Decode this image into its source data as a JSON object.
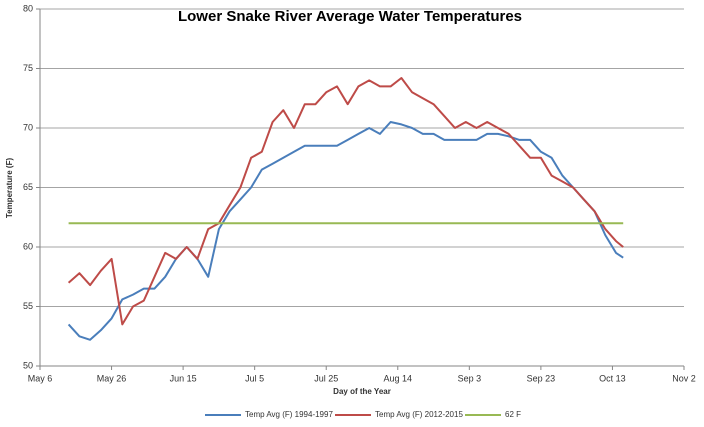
{
  "chart_data": {
    "type": "line",
    "title": "Lower Snake River Average Water Temperatures",
    "x_label": "Day of the Year",
    "y_label": "Temperature (F)",
    "x": [
      "May 14",
      "May 17",
      "May 20",
      "May 23",
      "May 26",
      "May 29",
      "Jun 1",
      "Jun 4",
      "Jun 7",
      "Jun 10",
      "Jun 13",
      "Jun 16",
      "Jun 19",
      "Jun 22",
      "Jun 25",
      "Jun 28",
      "Jul 1",
      "Jul 4",
      "Jul 7",
      "Jul 10",
      "Jul 13",
      "Jul 16",
      "Jul 19",
      "Jul 22",
      "Jul 25",
      "Jul 28",
      "Jul 31",
      "Aug 3",
      "Aug 6",
      "Aug 9",
      "Aug 12",
      "Aug 15",
      "Aug 18",
      "Aug 21",
      "Aug 24",
      "Aug 27",
      "Aug 30",
      "Sep 2",
      "Sep 5",
      "Sep 8",
      "Sep 11",
      "Sep 14",
      "Sep 17",
      "Sep 20",
      "Sep 23",
      "Sep 26",
      "Sep 29",
      "Oct 2",
      "Oct 5",
      "Oct 8",
      "Oct 11",
      "Oct 14",
      "Oct 16"
    ],
    "series": [
      {
        "name": "Temp Avg (F) 1994-1997",
        "color": "#4a7ebb",
        "values": [
          53.5,
          52.5,
          52.2,
          53,
          54,
          55.6,
          56,
          56.5,
          56.5,
          57.5,
          59,
          60,
          59,
          57.5,
          61.5,
          63,
          64,
          65,
          66.5,
          67,
          67.5,
          68,
          68.5,
          68.5,
          68.5,
          68.5,
          69,
          69.5,
          70,
          69.5,
          70.5,
          70.3,
          70,
          69.5,
          69.5,
          69,
          69,
          69,
          69,
          69.5,
          69.5,
          69.3,
          69,
          69,
          68,
          67.5,
          66,
          65,
          64,
          63,
          61,
          59.5,
          59.1
        ]
      },
      {
        "name": "Temp Avg (F) 2012-2015",
        "color": "#be4b48",
        "values": [
          57,
          57.8,
          56.8,
          58,
          59,
          53.5,
          55,
          55.5,
          57.5,
          59.5,
          59,
          60,
          59,
          61.5,
          62,
          63.5,
          65,
          67.5,
          68,
          70.5,
          71.5,
          70,
          72,
          72,
          73,
          73.5,
          72,
          73.5,
          74,
          73.5,
          73.5,
          74.2,
          73,
          72.5,
          72,
          71,
          70,
          70.5,
          70,
          70.5,
          70,
          69.5,
          68.5,
          67.5,
          67.5,
          66,
          65.5,
          65,
          64,
          63,
          61.5,
          60.5,
          60
        ]
      },
      {
        "name": "62 F",
        "color": "#98b954",
        "values": [
          62,
          62,
          62,
          62,
          62,
          62,
          62,
          62,
          62,
          62,
          62,
          62,
          62,
          62,
          62,
          62,
          62,
          62,
          62,
          62,
          62,
          62,
          62,
          62,
          62,
          62,
          62,
          62,
          62,
          62,
          62,
          62,
          62,
          62,
          62,
          62,
          62,
          62,
          62,
          62,
          62,
          62,
          62,
          62,
          62,
          62,
          62,
          62,
          62,
          62,
          62,
          62,
          62
        ]
      }
    ],
    "xlim": [
      "May 6",
      "Nov 2"
    ],
    "xticks": [
      "May 6",
      "May 26",
      "Jun 15",
      "Jul 5",
      "Jul 25",
      "Aug 14",
      "Sep 3",
      "Sep 23",
      "Oct 13",
      "Nov 2"
    ],
    "ylim": [
      50,
      80
    ],
    "yticks": [
      50,
      55,
      60,
      65,
      70,
      75,
      80
    ],
    "grid": true,
    "legend": "bottom"
  }
}
